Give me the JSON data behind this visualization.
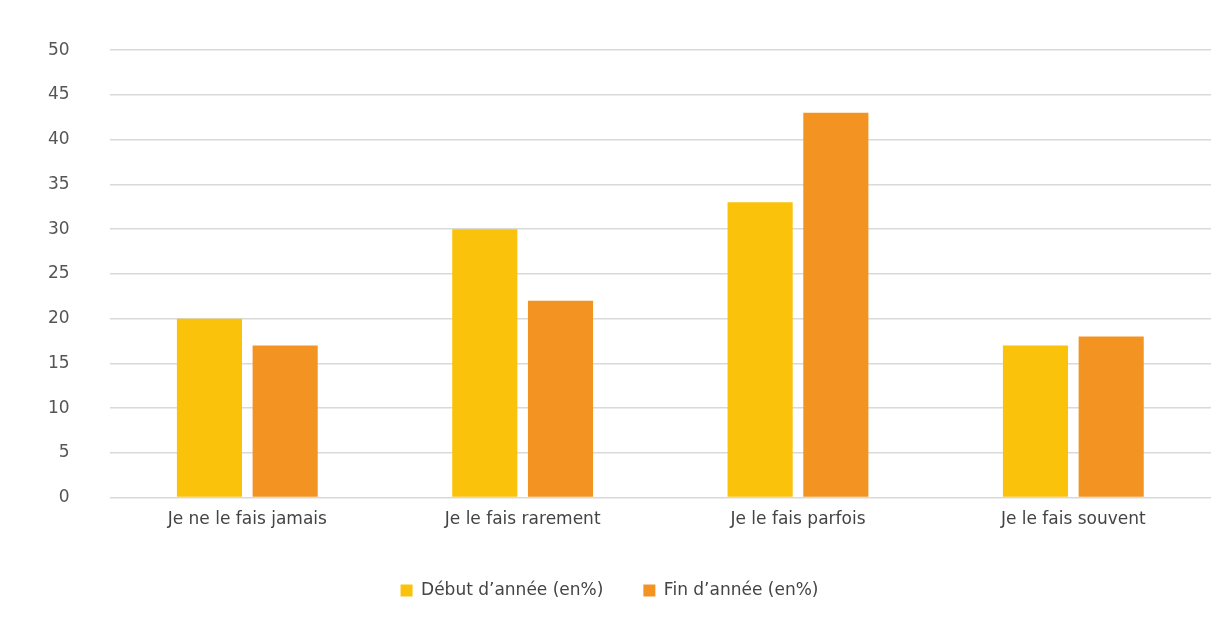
{
  "chart_data": {
    "type": "bar",
    "categories": [
      "Je ne le fais jamais",
      "Je le fais rarement",
      "Je le fais parfois",
      "Je le fais souvent"
    ],
    "series": [
      {
        "name": "Début d’année (en%)",
        "color": "#fac20a",
        "values": [
          20,
          30,
          33,
          17
        ]
      },
      {
        "name": "Fin d’année (en%)",
        "color": "#f39422",
        "values": [
          17,
          22,
          43,
          18
        ]
      }
    ],
    "ylim": [
      0,
      50
    ],
    "yticks": [
      0,
      5,
      10,
      15,
      20,
      25,
      30,
      35,
      40,
      45,
      50
    ],
    "grid": "y",
    "legend": "bottom"
  }
}
